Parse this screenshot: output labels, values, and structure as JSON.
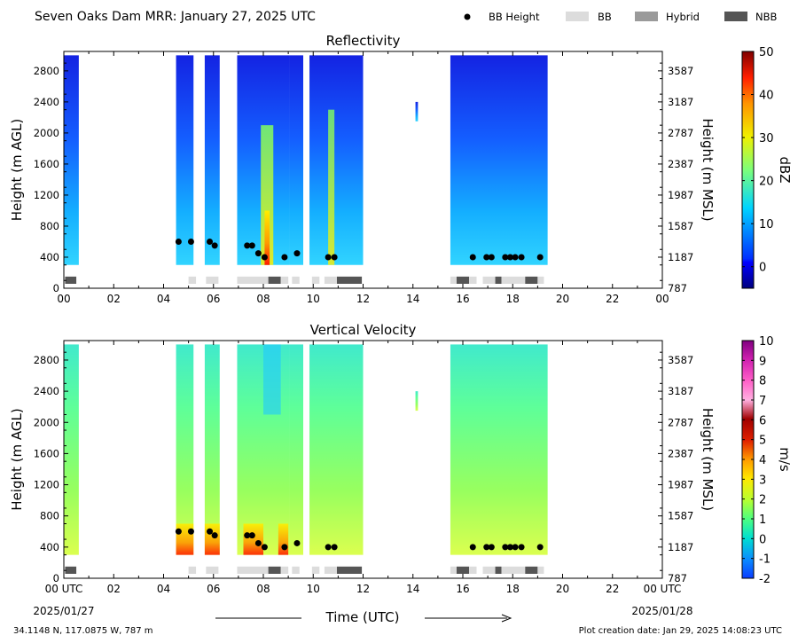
{
  "header": {
    "title": "Seven Oaks Dam MRR:  January 27, 2025 UTC",
    "legend": [
      {
        "label": "BB Height",
        "kind": "dot",
        "color": "#000000"
      },
      {
        "label": "BB",
        "kind": "swatch",
        "color": "#dcdcdc"
      },
      {
        "label": "Hybrid",
        "kind": "swatch",
        "color": "#9a9a9a"
      },
      {
        "label": "NBB",
        "kind": "swatch",
        "color": "#555555"
      }
    ]
  },
  "footer": {
    "location": "34.1148 N, 117.0875 W, 787 m",
    "created": "Plot creation date: Jan 29, 2025 14:08:23 UTC",
    "xlabel": "Time (UTC)",
    "start_date": "2025/01/27",
    "end_date": "2025/01/28"
  },
  "chart_data": [
    {
      "type": "heatmap",
      "title": "Reflectivity",
      "xlabel": "",
      "ylabel": "Height (m AGL)",
      "ylabel_right": "Height (m MSL)",
      "xlim": [
        0,
        24
      ],
      "ylim": [
        0,
        3050
      ],
      "x_ticks": [
        "00",
        "02",
        "04",
        "06",
        "08",
        "10",
        "12",
        "14",
        "16",
        "18",
        "20",
        "22",
        "00"
      ],
      "y_ticks": [
        0,
        400,
        800,
        1200,
        1600,
        2000,
        2400,
        2800
      ],
      "y_ticks_right": [
        787,
        1187,
        1587,
        1987,
        2387,
        2787,
        3187,
        3587
      ],
      "colorbar": {
        "label": "dBZ",
        "min": -5,
        "max": 50,
        "ticks": [
          0,
          10,
          20,
          30,
          40,
          50
        ],
        "colormap": "jet"
      },
      "bb_height_points": [
        [
          4.6,
          600
        ],
        [
          5.1,
          600
        ],
        [
          5.85,
          600
        ],
        [
          6.05,
          550
        ],
        [
          7.35,
          550
        ],
        [
          7.55,
          550
        ],
        [
          7.8,
          450
        ],
        [
          8.05,
          400
        ],
        [
          8.85,
          400
        ],
        [
          9.35,
          450
        ],
        [
          10.6,
          400
        ],
        [
          10.85,
          400
        ],
        [
          16.4,
          400
        ],
        [
          16.95,
          400
        ],
        [
          17.15,
          400
        ],
        [
          17.7,
          400
        ],
        [
          17.9,
          400
        ],
        [
          18.1,
          400
        ],
        [
          18.35,
          400
        ],
        [
          19.1,
          400
        ]
      ],
      "bb_classification": [
        {
          "start": 0.05,
          "end": 0.5,
          "class": "NBB"
        },
        {
          "start": 5.0,
          "end": 5.3,
          "class": "BB"
        },
        {
          "start": 5.7,
          "end": 6.2,
          "class": "BB"
        },
        {
          "start": 6.95,
          "end": 8.2,
          "class": "BB"
        },
        {
          "start": 8.2,
          "end": 8.7,
          "class": "NBB"
        },
        {
          "start": 8.7,
          "end": 9.0,
          "class": "BB"
        },
        {
          "start": 9.15,
          "end": 9.45,
          "class": "BB"
        },
        {
          "start": 9.95,
          "end": 10.25,
          "class": "BB"
        },
        {
          "start": 10.45,
          "end": 10.95,
          "class": "BB"
        },
        {
          "start": 10.95,
          "end": 11.95,
          "class": "NBB"
        },
        {
          "start": 15.5,
          "end": 15.75,
          "class": "BB"
        },
        {
          "start": 15.75,
          "end": 16.25,
          "class": "NBB"
        },
        {
          "start": 16.25,
          "end": 16.55,
          "class": "BB"
        },
        {
          "start": 16.8,
          "end": 17.3,
          "class": "BB"
        },
        {
          "start": 17.3,
          "end": 17.55,
          "class": "NBB"
        },
        {
          "start": 17.55,
          "end": 18.5,
          "class": "BB"
        },
        {
          "start": 18.5,
          "end": 19.0,
          "class": "NBB"
        },
        {
          "start": 19.0,
          "end": 19.25,
          "class": "BB"
        }
      ],
      "echo_periods_hours": [
        [
          0.0,
          0.6
        ],
        [
          4.5,
          5.2
        ],
        [
          5.65,
          6.25
        ],
        [
          6.95,
          9.05
        ],
        [
          9.05,
          9.6
        ],
        [
          9.85,
          12.0
        ],
        [
          14.1,
          14.2
        ],
        [
          15.5,
          19.4
        ]
      ]
    },
    {
      "type": "heatmap",
      "title": "Vertical Velocity",
      "xlabel": "Time (UTC)",
      "ylabel": "Height (m AGL)",
      "ylabel_right": "Height (m MSL)",
      "xlim": [
        0,
        24
      ],
      "ylim": [
        0,
        3050
      ],
      "x_ticks": [
        "00 UTC",
        "02",
        "04",
        "06",
        "08",
        "10",
        "12",
        "14",
        "16",
        "18",
        "20",
        "22",
        "00 UTC"
      ],
      "y_ticks": [
        0,
        400,
        800,
        1200,
        1600,
        2000,
        2400,
        2800
      ],
      "y_ticks_right": [
        787,
        1187,
        1587,
        1987,
        2387,
        2787,
        3187,
        3587
      ],
      "colorbar": {
        "label": "m/s",
        "min": -2,
        "max": 10,
        "ticks": [
          -2,
          -1,
          0,
          1,
          2,
          3,
          4,
          5,
          6,
          7,
          8,
          9,
          10
        ],
        "colormap": "velocity"
      },
      "bb_height_points": [
        [
          4.6,
          600
        ],
        [
          5.1,
          600
        ],
        [
          5.85,
          600
        ],
        [
          6.05,
          550
        ],
        [
          7.35,
          550
        ],
        [
          7.55,
          550
        ],
        [
          7.8,
          450
        ],
        [
          8.05,
          400
        ],
        [
          8.85,
          400
        ],
        [
          9.35,
          450
        ],
        [
          10.6,
          400
        ],
        [
          10.85,
          400
        ],
        [
          16.4,
          400
        ],
        [
          16.95,
          400
        ],
        [
          17.15,
          400
        ],
        [
          17.7,
          400
        ],
        [
          17.9,
          400
        ],
        [
          18.1,
          400
        ],
        [
          18.35,
          400
        ],
        [
          19.1,
          400
        ]
      ],
      "bb_classification": [
        {
          "start": 0.05,
          "end": 0.5,
          "class": "NBB"
        },
        {
          "start": 5.0,
          "end": 5.3,
          "class": "BB"
        },
        {
          "start": 5.7,
          "end": 6.2,
          "class": "BB"
        },
        {
          "start": 6.95,
          "end": 8.2,
          "class": "BB"
        },
        {
          "start": 8.2,
          "end": 8.7,
          "class": "NBB"
        },
        {
          "start": 8.7,
          "end": 9.0,
          "class": "BB"
        },
        {
          "start": 9.15,
          "end": 9.45,
          "class": "BB"
        },
        {
          "start": 9.95,
          "end": 10.25,
          "class": "BB"
        },
        {
          "start": 10.45,
          "end": 10.95,
          "class": "BB"
        },
        {
          "start": 10.95,
          "end": 11.95,
          "class": "NBB"
        },
        {
          "start": 15.5,
          "end": 15.75,
          "class": "BB"
        },
        {
          "start": 15.75,
          "end": 16.25,
          "class": "NBB"
        },
        {
          "start": 16.25,
          "end": 16.55,
          "class": "BB"
        },
        {
          "start": 16.8,
          "end": 17.3,
          "class": "BB"
        },
        {
          "start": 17.3,
          "end": 17.55,
          "class": "NBB"
        },
        {
          "start": 17.55,
          "end": 18.5,
          "class": "BB"
        },
        {
          "start": 18.5,
          "end": 19.0,
          "class": "NBB"
        },
        {
          "start": 19.0,
          "end": 19.25,
          "class": "BB"
        }
      ],
      "echo_periods_hours": [
        [
          0.0,
          0.6
        ],
        [
          4.5,
          5.2
        ],
        [
          5.65,
          6.25
        ],
        [
          6.95,
          9.05
        ],
        [
          9.05,
          9.6
        ],
        [
          9.85,
          12.0
        ],
        [
          14.1,
          14.2
        ],
        [
          15.5,
          19.4
        ]
      ]
    }
  ]
}
